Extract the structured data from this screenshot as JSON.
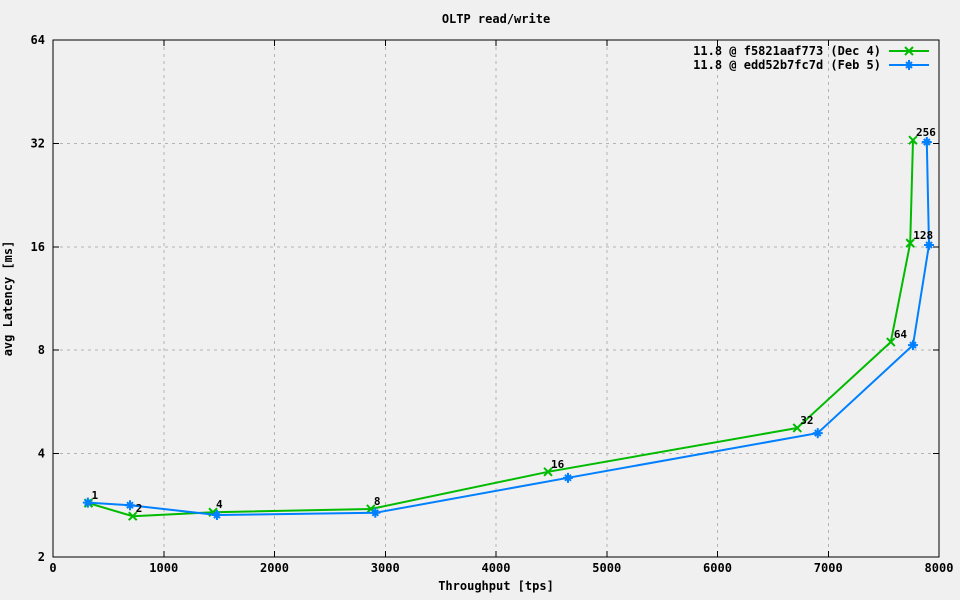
{
  "figure": {
    "background_color": "#f0f0f0",
    "grid_color": "#b4b4b4",
    "axis_color": "#000000",
    "text_color": "#000000"
  },
  "chart_data": {
    "type": "line",
    "title": "OLTP read/write",
    "xlabel": "Throughput [tps]",
    "ylabel": "avg Latency [ms]",
    "xlim": [
      0,
      8000
    ],
    "ylim": [
      2,
      64
    ],
    "x_scale": "linear",
    "y_scale": "log2",
    "grid": true,
    "legend_position": "top-right-inside",
    "x_ticks": [
      0,
      1000,
      2000,
      3000,
      4000,
      5000,
      6000,
      7000,
      8000
    ],
    "x_tick_labels": [
      "0",
      "1000",
      "2000",
      "3000",
      "4000",
      "5000",
      "6000",
      "7000",
      "8000"
    ],
    "y_ticks": [
      2,
      4,
      8,
      16,
      32,
      64
    ],
    "y_tick_labels": [
      "2",
      "4",
      "8",
      "16",
      "32",
      "64"
    ],
    "series": [
      {
        "name": "11.8 @ f5821aaf773 (Dec 4)",
        "color": "#00bb00",
        "marker": "cross",
        "points": [
          {
            "label": "1",
            "x": 320,
            "y": 2.87
          },
          {
            "label": "2",
            "x": 720,
            "y": 2.63
          },
          {
            "label": "4",
            "x": 1445,
            "y": 2.7
          },
          {
            "label": "8",
            "x": 2870,
            "y": 2.76
          },
          {
            "label": "16",
            "x": 4470,
            "y": 3.54
          },
          {
            "label": "32",
            "x": 6720,
            "y": 4.75
          },
          {
            "label": "64",
            "x": 7565,
            "y": 8.45
          },
          {
            "label": "128",
            "x": 7740,
            "y": 16.4
          },
          {
            "label": "256",
            "x": 7765,
            "y": 32.7
          }
        ]
      },
      {
        "name": "11.8 @ edd52b7fc7d (Feb 5)",
        "color": "#0080ff",
        "marker": "asterisk",
        "points": [
          {
            "label": "1",
            "x": 315,
            "y": 2.88
          },
          {
            "label": "2",
            "x": 695,
            "y": 2.83
          },
          {
            "label": "4",
            "x": 1480,
            "y": 2.65
          },
          {
            "label": "8",
            "x": 2910,
            "y": 2.69
          },
          {
            "label": "16",
            "x": 4650,
            "y": 3.4
          },
          {
            "label": "32",
            "x": 6905,
            "y": 4.59
          },
          {
            "label": "64",
            "x": 7765,
            "y": 8.28
          },
          {
            "label": "128",
            "x": 7910,
            "y": 16.2
          },
          {
            "label": "256",
            "x": 7890,
            "y": 32.3
          }
        ]
      }
    ],
    "point_label_series": 0
  }
}
